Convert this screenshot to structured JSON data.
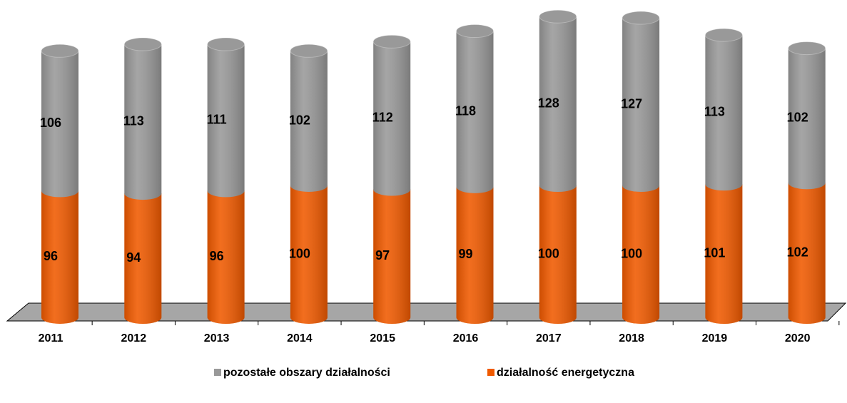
{
  "chart_data": {
    "type": "bar",
    "categories": [
      "2011",
      "2012",
      "2013",
      "2014",
      "2015",
      "2016",
      "2017",
      "2018",
      "2019",
      "2020"
    ],
    "stacked": true,
    "series": [
      {
        "name": "działalność energetyczna",
        "color": "#f05a00",
        "values": [
          96,
          94,
          96,
          100,
          97,
          99,
          100,
          100,
          101,
          102
        ]
      },
      {
        "name": "pozostałe obszary działalności",
        "color": "#999999",
        "values": [
          106,
          113,
          111,
          102,
          112,
          118,
          128,
          127,
          113,
          102
        ]
      }
    ]
  }
}
